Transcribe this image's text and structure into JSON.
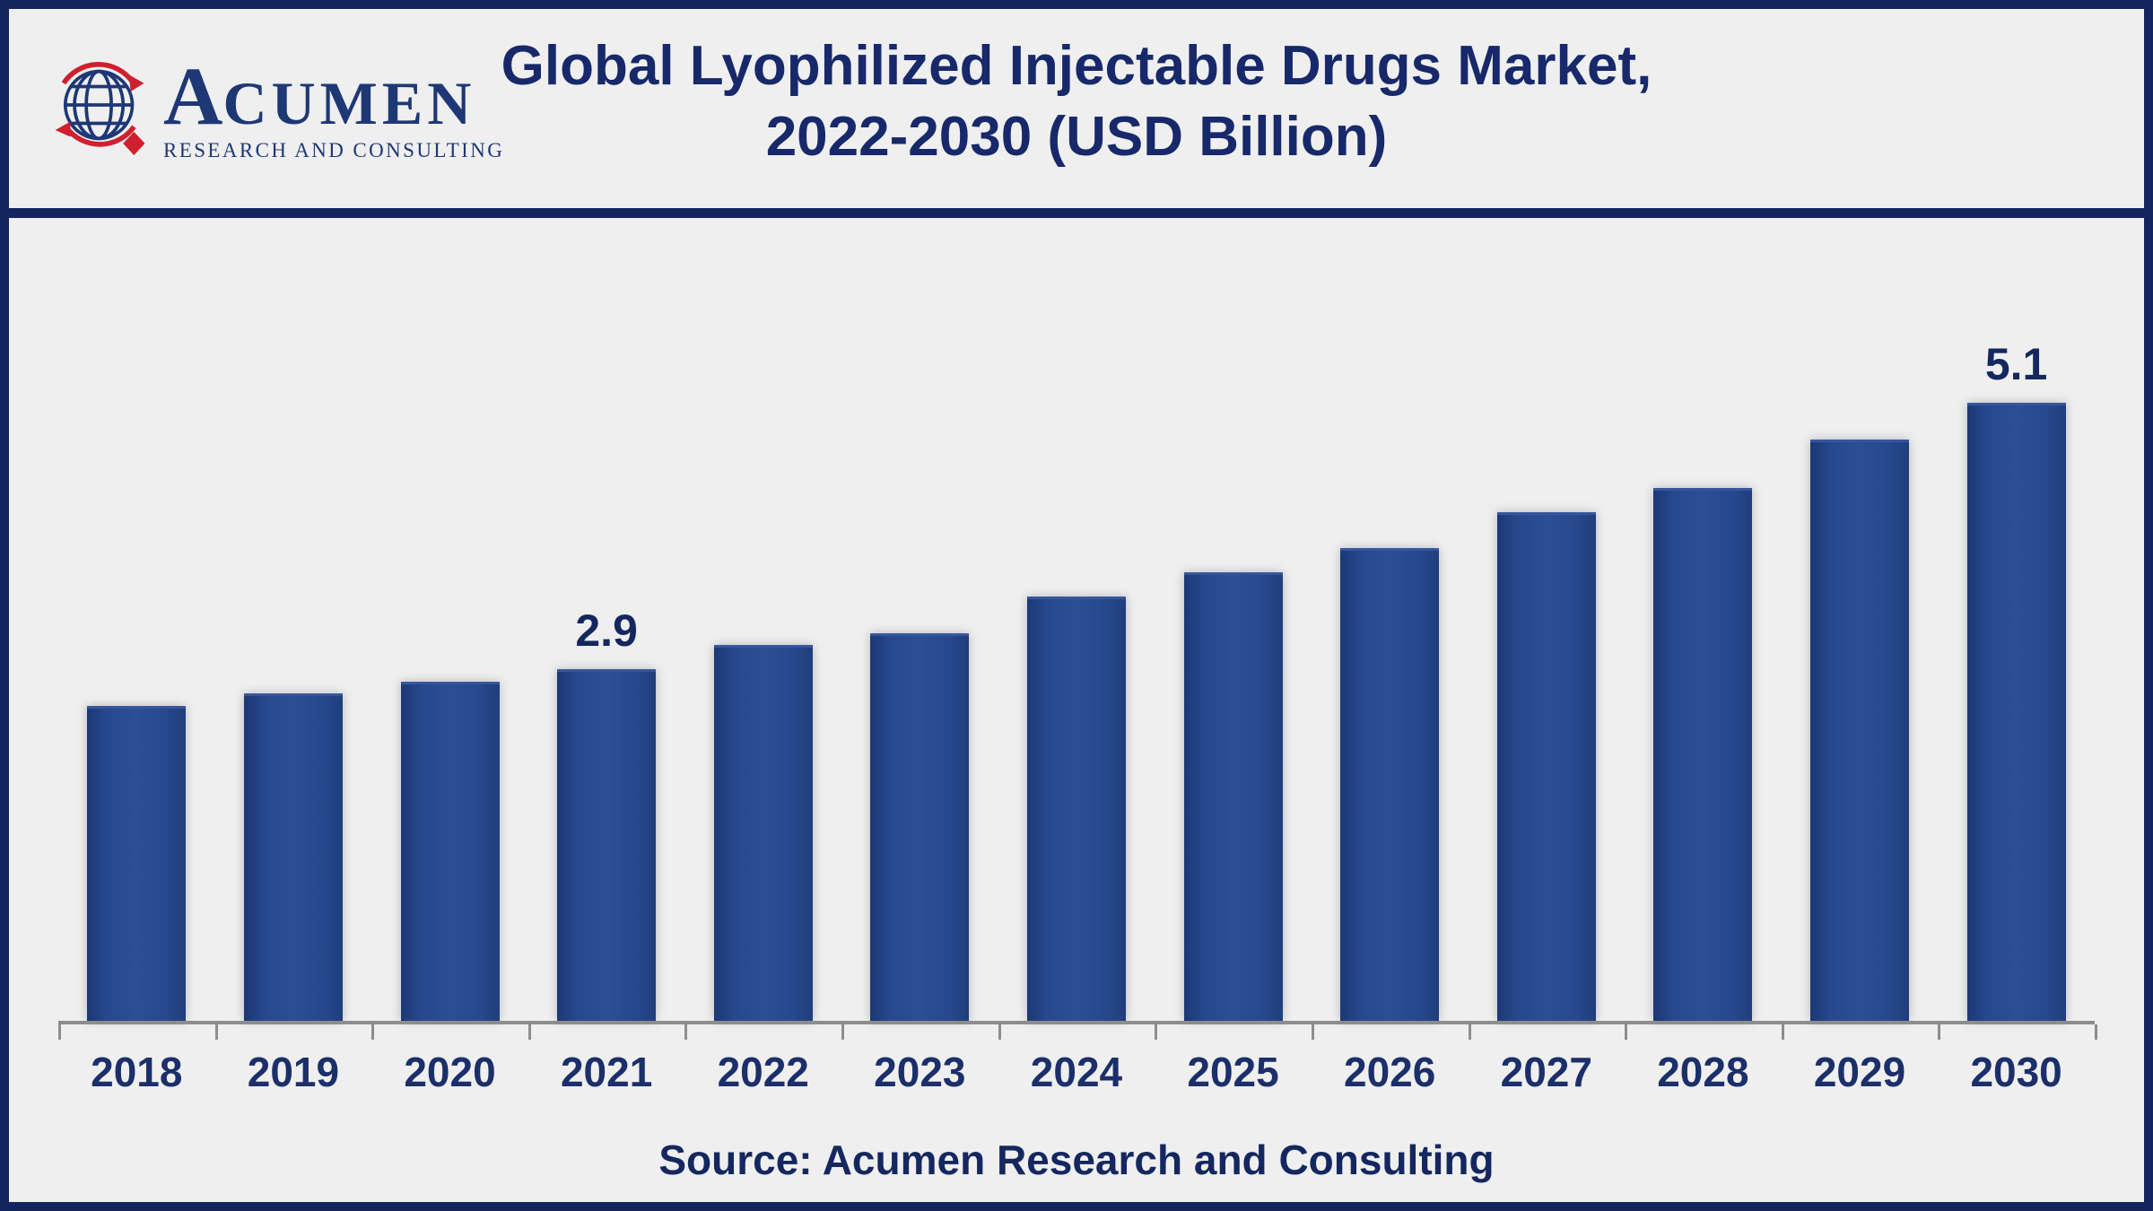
{
  "header": {
    "logo": {
      "name_first_letter": "A",
      "name_rest": "CUMEN",
      "tagline": "RESEARCH AND CONSULTING"
    },
    "title_line1": "Global Lyophilized Injectable Drugs Market,",
    "title_line2": "2022-2030 (USD Billion)"
  },
  "footer": {
    "source": "Source: Acumen Research and Consulting"
  },
  "colors": {
    "background": "#efefef",
    "frame_navy": "#13255c",
    "title_navy": "#17296a",
    "label_navy": "#14275f",
    "bar_edge_dark": "#1c3875",
    "bar_center": "#2c4e94",
    "axis_gray": "#8d8d8d",
    "logo_navy": "#1e3876",
    "logo_red": "#cf202f"
  },
  "chart_data": {
    "type": "bar",
    "title": "Global Lyophilized Injectable Drugs Market, 2022-2030 (USD Billion)",
    "categories": [
      "2018",
      "2019",
      "2020",
      "2021",
      "2022",
      "2023",
      "2024",
      "2025",
      "2026",
      "2027",
      "2028",
      "2029",
      "2030"
    ],
    "values": [
      2.6,
      2.7,
      2.8,
      2.9,
      3.1,
      3.2,
      3.5,
      3.7,
      3.9,
      4.2,
      4.4,
      4.8,
      5.1
    ],
    "value_labels": [
      {
        "index": 3,
        "text": "2.9"
      },
      {
        "index": 12,
        "text": "5.1"
      }
    ],
    "xlabel": "",
    "ylabel": "",
    "unit": "USD Billion",
    "ylim": [
      0,
      6.6
    ],
    "grid": false,
    "legend": false,
    "bar_gradient": [
      "#1c3875",
      "#2c4e94",
      "#203e7d"
    ]
  }
}
